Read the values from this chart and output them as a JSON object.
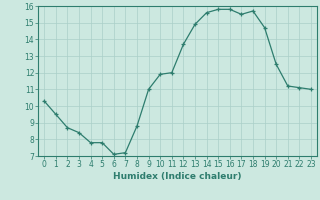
{
  "x": [
    0,
    1,
    2,
    3,
    4,
    5,
    6,
    7,
    8,
    9,
    10,
    11,
    12,
    13,
    14,
    15,
    16,
    17,
    18,
    19,
    20,
    21,
    22,
    23
  ],
  "y": [
    10.3,
    9.5,
    8.7,
    8.4,
    7.8,
    7.8,
    7.1,
    7.2,
    8.8,
    11.0,
    11.9,
    12.0,
    13.7,
    14.9,
    15.6,
    15.8,
    15.8,
    15.5,
    15.7,
    14.7,
    12.5,
    11.2,
    11.1,
    11.0
  ],
  "line_color": "#2e7d6e",
  "marker": "+",
  "bg_color": "#cce8e0",
  "grid_color": "#aacfc8",
  "xlabel": "Humidex (Indice chaleur)",
  "ylim": [
    7,
    16
  ],
  "xlim": [
    -0.5,
    23.5
  ],
  "yticks": [
    7,
    8,
    9,
    10,
    11,
    12,
    13,
    14,
    15,
    16
  ],
  "xticks": [
    0,
    1,
    2,
    3,
    4,
    5,
    6,
    7,
    8,
    9,
    10,
    11,
    12,
    13,
    14,
    15,
    16,
    17,
    18,
    19,
    20,
    21,
    22,
    23
  ],
  "xlabel_fontsize": 6.5,
  "tick_fontsize": 5.5
}
